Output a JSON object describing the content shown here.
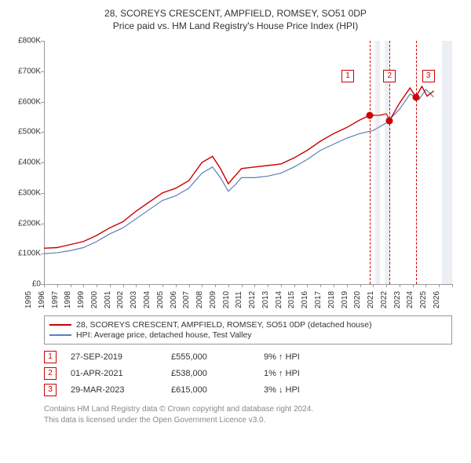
{
  "title": {
    "line1": "28, SCOREYS CRESCENT, AMPFIELD, ROMSEY, SO51 0DP",
    "line2": "Price paid vs. HM Land Registry's House Price Index (HPI)"
  },
  "chart": {
    "type": "line",
    "background_color": "#ffffff",
    "axis_color": "#999999",
    "text_color": "#333333",
    "x": {
      "min": 1995,
      "max": 2026,
      "ticks": [
        1995,
        1996,
        1997,
        1998,
        1999,
        2000,
        2001,
        2002,
        2003,
        2004,
        2005,
        2006,
        2007,
        2008,
        2009,
        2010,
        2011,
        2012,
        2013,
        2014,
        2015,
        2016,
        2017,
        2018,
        2019,
        2020,
        2021,
        2022,
        2023,
        2024,
        2025,
        2026
      ]
    },
    "y": {
      "min": 0,
      "max": 800000,
      "ticks": [
        0,
        100000,
        200000,
        300000,
        400000,
        500000,
        600000,
        700000,
        800000
      ],
      "labels": [
        "£0",
        "£100K",
        "£200K",
        "£300K",
        "£400K",
        "£500K",
        "£600K",
        "£700K",
        "£800K"
      ]
    },
    "bands": [
      {
        "from": 2020.15,
        "to": 2020.5,
        "color": "rgba(180,190,210,0.25)"
      },
      {
        "from": 2020.85,
        "to": 2021.3,
        "color": "rgba(180,190,210,0.25)"
      },
      {
        "from": 2025.2,
        "to": 2026.0,
        "color": "rgba(180,190,210,0.25)"
      }
    ],
    "vlines_color": "#cc0000",
    "markers": [
      {
        "n": "1",
        "x": 2019.74,
        "price": 555000
      },
      {
        "n": "2",
        "x": 2021.25,
        "price": 538000
      },
      {
        "n": "3",
        "x": 2023.24,
        "price": 615000
      }
    ],
    "series": [
      {
        "name": "28, SCOREYS CRESCENT, AMPFIELD, ROMSEY, SO51 0DP (detached house)",
        "color": "#cc0000",
        "width": 1.4,
        "points": [
          [
            1995,
            118000
          ],
          [
            1996,
            120000
          ],
          [
            1997,
            130000
          ],
          [
            1998,
            140000
          ],
          [
            1999,
            160000
          ],
          [
            2000,
            185000
          ],
          [
            2001,
            205000
          ],
          [
            2002,
            240000
          ],
          [
            2003,
            270000
          ],
          [
            2004,
            300000
          ],
          [
            2005,
            315000
          ],
          [
            2006,
            340000
          ],
          [
            2007,
            400000
          ],
          [
            2007.8,
            420000
          ],
          [
            2008.4,
            380000
          ],
          [
            2009,
            330000
          ],
          [
            2009.6,
            360000
          ],
          [
            2010,
            380000
          ],
          [
            2011,
            385000
          ],
          [
            2012,
            390000
          ],
          [
            2013,
            395000
          ],
          [
            2014,
            415000
          ],
          [
            2015,
            440000
          ],
          [
            2016,
            470000
          ],
          [
            2017,
            495000
          ],
          [
            2018,
            515000
          ],
          [
            2019,
            540000
          ],
          [
            2019.74,
            555000
          ],
          [
            2020.5,
            555000
          ],
          [
            2021,
            560000
          ],
          [
            2021.25,
            538000
          ],
          [
            2022,
            595000
          ],
          [
            2022.8,
            645000
          ],
          [
            2023.24,
            615000
          ],
          [
            2023.7,
            650000
          ],
          [
            2024.1,
            618000
          ],
          [
            2024.6,
            635000
          ]
        ]
      },
      {
        "name": "HPI: Average price, detached house, Test Valley",
        "color": "#5b7fb5",
        "width": 1.2,
        "points": [
          [
            1995,
            100000
          ],
          [
            1996,
            103000
          ],
          [
            1997,
            110000
          ],
          [
            1998,
            120000
          ],
          [
            1999,
            140000
          ],
          [
            2000,
            165000
          ],
          [
            2001,
            185000
          ],
          [
            2002,
            215000
          ],
          [
            2003,
            245000
          ],
          [
            2004,
            275000
          ],
          [
            2005,
            290000
          ],
          [
            2006,
            315000
          ],
          [
            2007,
            365000
          ],
          [
            2007.8,
            385000
          ],
          [
            2008.4,
            350000
          ],
          [
            2009,
            305000
          ],
          [
            2009.6,
            330000
          ],
          [
            2010,
            350000
          ],
          [
            2011,
            350000
          ],
          [
            2012,
            355000
          ],
          [
            2013,
            365000
          ],
          [
            2014,
            385000
          ],
          [
            2015,
            410000
          ],
          [
            2016,
            440000
          ],
          [
            2017,
            460000
          ],
          [
            2018,
            480000
          ],
          [
            2019,
            495000
          ],
          [
            2020,
            505000
          ],
          [
            2021,
            530000
          ],
          [
            2022,
            575000
          ],
          [
            2022.8,
            625000
          ],
          [
            2023.5,
            608000
          ],
          [
            2024,
            640000
          ],
          [
            2024.6,
            615000
          ]
        ]
      }
    ],
    "marker_dot_color": "#cc0000",
    "marker_dot_radius": 4.5
  },
  "legend": {
    "items": [
      {
        "color": "#cc0000",
        "label": "28, SCOREYS CRESCENT, AMPFIELD, ROMSEY, SO51 0DP (detached house)"
      },
      {
        "color": "#5b7fb5",
        "label": "HPI: Average price, detached house, Test Valley"
      }
    ]
  },
  "transactions": [
    {
      "n": "1",
      "date": "27-SEP-2019",
      "price": "£555,000",
      "diff": "9% ↑ HPI"
    },
    {
      "n": "2",
      "date": "01-APR-2021",
      "price": "£538,000",
      "diff": "1% ↑ HPI"
    },
    {
      "n": "3",
      "date": "29-MAR-2023",
      "price": "£615,000",
      "diff": "3% ↓ HPI"
    }
  ],
  "footer": {
    "line1": "Contains HM Land Registry data © Crown copyright and database right 2024.",
    "line2": "This data is licensed under the Open Government Licence v3.0."
  }
}
